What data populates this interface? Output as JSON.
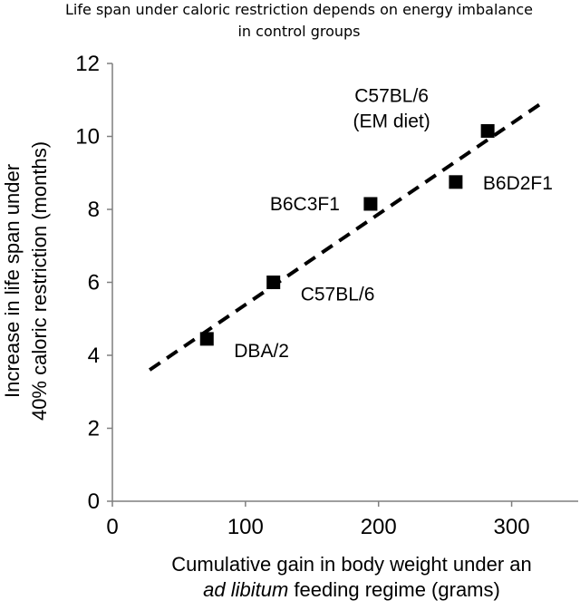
{
  "chart_data": {
    "type": "scatter",
    "title_lines": [
      "Life span under caloric restriction depends on energy imbalance",
      "in control groups"
    ],
    "xlabel_lines": [
      {
        "parts": [
          {
            "text": "Cumulative gain in body weight under an",
            "italic": false
          }
        ]
      },
      {
        "parts": [
          {
            "text": "ad libitum",
            "italic": true
          },
          {
            "text": " feeding regime (grams)",
            "italic": false
          }
        ]
      }
    ],
    "ylabel_lines": [
      "Increase in life span under",
      "40% caloric restriction (months)"
    ],
    "xlim": [
      0,
      350
    ],
    "ylim": [
      0,
      12
    ],
    "xticks": [
      0,
      100,
      200,
      300
    ],
    "yticks": [
      0,
      2,
      4,
      6,
      8,
      10,
      12
    ],
    "grid": false,
    "points": [
      {
        "label": [
          "DBA/2"
        ],
        "x": 71,
        "y": 4.45,
        "label_side": "right"
      },
      {
        "label": [
          "C57BL/6"
        ],
        "x": 121,
        "y": 6.0,
        "label_side": "right"
      },
      {
        "label": [
          "B6C3F1"
        ],
        "x": 194,
        "y": 8.15,
        "label_side": "left"
      },
      {
        "label": [
          "B6D2F1"
        ],
        "x": 258,
        "y": 8.75,
        "label_side": "right"
      },
      {
        "label": [
          "C57BL/6",
          "(EM diet)"
        ],
        "x": 282,
        "y": 10.15,
        "label_side": "above-left"
      }
    ],
    "trendline": {
      "style": "dashed",
      "x0": 28,
      "y0": 3.6,
      "x1": 322,
      "y1": 10.9
    }
  }
}
